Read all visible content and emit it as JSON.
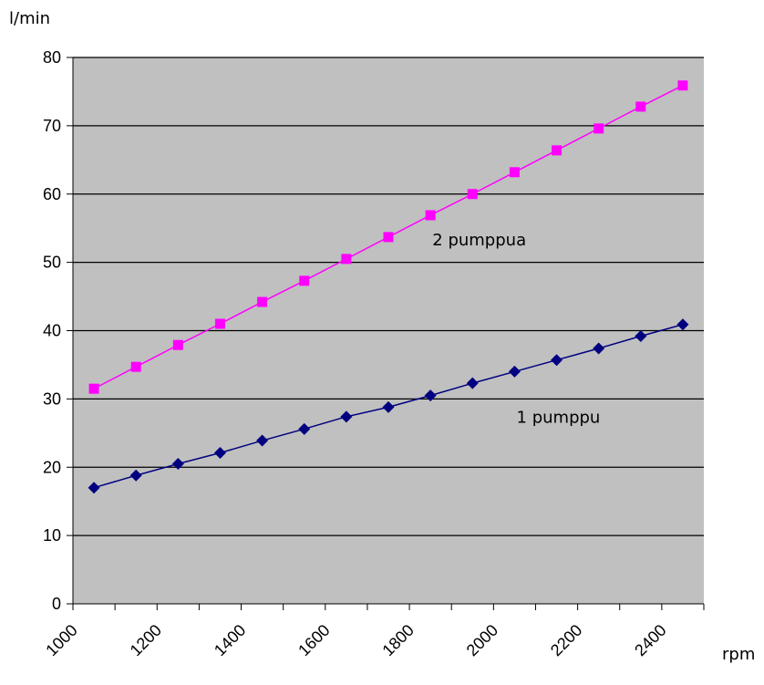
{
  "chart_data": {
    "type": "line",
    "ylabel": "l/min",
    "xlabel": "rpm",
    "ylim": [
      0,
      80
    ],
    "xlim": [
      1000,
      2500
    ],
    "yticks": [
      0,
      10,
      20,
      30,
      40,
      50,
      60,
      70,
      80
    ],
    "xticks": [
      1000,
      1200,
      1400,
      1600,
      1800,
      2000,
      2200,
      2400
    ],
    "grid": true,
    "background": "#c0c0c0",
    "x": [
      1050,
      1150,
      1250,
      1350,
      1450,
      1550,
      1650,
      1750,
      1850,
      1950,
      2050,
      2150,
      2250,
      2350,
      2450
    ],
    "series": [
      {
        "name": "2 pumppua",
        "color": "#ff00ff",
        "marker": "square",
        "values": [
          31.5,
          34.7,
          37.9,
          41.0,
          44.2,
          47.3,
          50.5,
          53.7,
          56.9,
          60.0,
          63.2,
          66.4,
          69.6,
          72.8,
          75.9
        ]
      },
      {
        "name": "1 pumppu",
        "color": "#000080",
        "marker": "diamond",
        "values": [
          17.0,
          18.8,
          20.5,
          22.1,
          23.9,
          25.6,
          27.4,
          28.8,
          30.5,
          32.3,
          34.0,
          35.7,
          37.4,
          39.2,
          40.9
        ]
      }
    ],
    "annotations": [
      {
        "text": "2 pumppua",
        "series": 0
      },
      {
        "text": "1 pumppu",
        "series": 1
      }
    ]
  }
}
